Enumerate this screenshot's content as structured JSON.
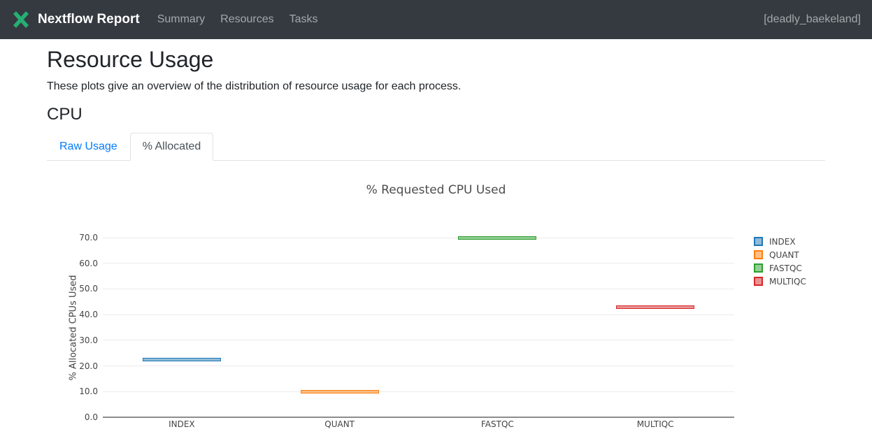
{
  "navbar": {
    "brand": "Nextflow Report",
    "items": [
      {
        "label": "Summary"
      },
      {
        "label": "Resources"
      },
      {
        "label": "Tasks"
      }
    ],
    "run_name": "[deadly_baekeland]",
    "bg_color": "#343a40",
    "logo_color": "#26af73"
  },
  "page": {
    "title": "Resource Usage",
    "subtitle": "These plots give an overview of the distribution of resource usage for each process.",
    "section_title": "CPU"
  },
  "tabs": [
    {
      "label": "Raw Usage",
      "active": false
    },
    {
      "label": "% Allocated",
      "active": true
    }
  ],
  "chart_data": {
    "type": "box",
    "title": "% Requested CPU Used",
    "xlabel": "",
    "ylabel": "% Allocated CPUs Used",
    "categories": [
      "INDEX",
      "QUANT",
      "FASTQC",
      "MULTIQC"
    ],
    "values": [
      22.6,
      9.9,
      70.0,
      42.8
    ],
    "series_colors": [
      "#1f77b4",
      "#ff7f0e",
      "#2ca02c",
      "#d62728"
    ],
    "ylim": [
      0,
      75
    ],
    "ytick_labels": [
      "0.0",
      "10.0",
      "20.0",
      "30.0",
      "40.0",
      "50.0",
      "60.0",
      "70.0"
    ],
    "grid": true,
    "legend_position": "right",
    "legend_entries": [
      "INDEX",
      "QUANT",
      "FASTQC",
      "MULTIQC"
    ]
  }
}
